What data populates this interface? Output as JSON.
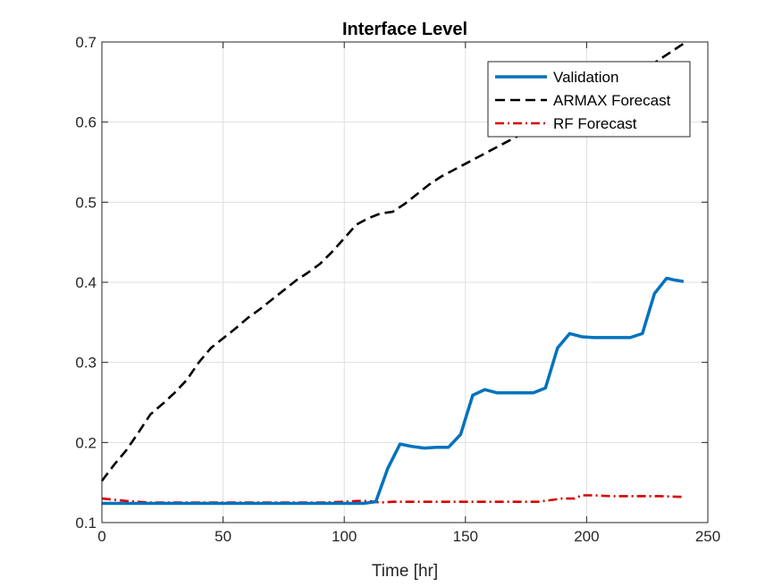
{
  "chart_data": {
    "type": "line",
    "title": "Interface Level",
    "xlabel": "Time [hr]",
    "ylabel": "",
    "xlim": [
      0,
      250
    ],
    "ylim": [
      0.1,
      0.7
    ],
    "xticks": [
      0,
      50,
      100,
      150,
      200,
      250
    ],
    "yticks": [
      0.1,
      0.2,
      0.3,
      0.4,
      0.5,
      0.6,
      0.7
    ],
    "xtick_labels": [
      "0",
      "50",
      "100",
      "150",
      "200",
      "250"
    ],
    "ytick_labels": [
      "0.1",
      "0.2",
      "0.3",
      "0.4",
      "0.5",
      "0.6",
      "0.7"
    ],
    "grid": true,
    "legend_position": "top-right",
    "series": [
      {
        "name": "Validation",
        "color": "#0072BD",
        "style": "solid",
        "x": [
          0,
          10,
          20,
          30,
          40,
          50,
          60,
          70,
          80,
          90,
          100,
          108,
          113,
          118,
          123,
          128,
          133,
          138,
          143,
          148,
          153,
          158,
          163,
          168,
          173,
          178,
          183,
          188,
          193,
          198,
          203,
          208,
          213,
          218,
          223,
          228,
          233,
          236,
          240
        ],
        "y": [
          0.124,
          0.124,
          0.124,
          0.124,
          0.124,
          0.124,
          0.124,
          0.124,
          0.124,
          0.124,
          0.124,
          0.124,
          0.126,
          0.168,
          0.198,
          0.195,
          0.193,
          0.194,
          0.194,
          0.21,
          0.259,
          0.266,
          0.262,
          0.262,
          0.262,
          0.262,
          0.268,
          0.318,
          0.336,
          0.332,
          0.331,
          0.331,
          0.331,
          0.331,
          0.336,
          0.386,
          0.405,
          0.403,
          0.401
        ]
      },
      {
        "name": "ARMAX Forecast",
        "color": "#000000",
        "style": "dashed",
        "x": [
          0,
          5,
          10,
          15,
          20,
          25,
          30,
          35,
          40,
          45,
          50,
          55,
          60,
          65,
          70,
          75,
          80,
          85,
          90,
          95,
          100,
          105,
          110,
          115,
          120,
          125,
          130,
          135,
          140,
          145,
          150,
          155,
          160,
          165,
          170,
          175,
          180,
          185,
          190,
          195,
          200,
          205,
          210,
          215,
          220,
          225,
          230,
          235,
          240
        ],
        "y": [
          0.152,
          0.172,
          0.19,
          0.212,
          0.235,
          0.248,
          0.262,
          0.278,
          0.3,
          0.318,
          0.33,
          0.342,
          0.355,
          0.366,
          0.378,
          0.39,
          0.402,
          0.412,
          0.423,
          0.438,
          0.455,
          0.472,
          0.48,
          0.486,
          0.488,
          0.498,
          0.51,
          0.522,
          0.532,
          0.54,
          0.548,
          0.556,
          0.564,
          0.572,
          0.58,
          0.588,
          0.596,
          0.604,
          0.612,
          0.62,
          0.628,
          0.636,
          0.644,
          0.652,
          0.66,
          0.668,
          0.678,
          0.688,
          0.698
        ]
      },
      {
        "name": "RF Forecast",
        "color": "#D80000",
        "style": "dashdot",
        "x": [
          0,
          10,
          20,
          30,
          40,
          50,
          60,
          70,
          80,
          90,
          100,
          105,
          110,
          115,
          120,
          130,
          140,
          150,
          160,
          170,
          180,
          185,
          190,
          195,
          198,
          203,
          210,
          220,
          225,
          230,
          240
        ],
        "y": [
          0.13,
          0.127,
          0.125,
          0.125,
          0.125,
          0.125,
          0.125,
          0.125,
          0.125,
          0.125,
          0.126,
          0.127,
          0.127,
          0.125,
          0.126,
          0.126,
          0.126,
          0.126,
          0.126,
          0.126,
          0.126,
          0.128,
          0.13,
          0.13,
          0.134,
          0.134,
          0.133,
          0.133,
          0.133,
          0.133,
          0.132
        ]
      }
    ]
  }
}
